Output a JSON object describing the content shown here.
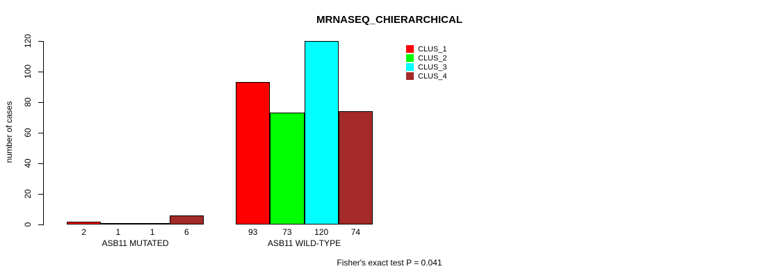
{
  "chart_data": {
    "type": "bar",
    "title": "MRNASEQ_CHIERARCHICAL",
    "xlabel": "",
    "ylabel": "number of cases",
    "ylim": [
      0,
      120
    ],
    "yticks": [
      0,
      20,
      40,
      60,
      80,
      100,
      120
    ],
    "grid": false,
    "legend_position": "top-right-inside",
    "groups": [
      "ASB11 MUTATED",
      "ASB11 WILD-TYPE"
    ],
    "series": [
      {
        "name": "CLUS_1",
        "color": "#ff0000",
        "values": [
          2,
          93
        ]
      },
      {
        "name": "CLUS_2",
        "color": "#00ff00",
        "values": [
          1,
          73
        ]
      },
      {
        "name": "CLUS_3",
        "color": "#00ffff",
        "values": [
          1,
          120
        ]
      },
      {
        "name": "CLUS_4",
        "color": "#a52a2a",
        "values": [
          6,
          74
        ]
      }
    ],
    "bar_value_labels": [
      [
        2,
        1,
        1,
        6
      ],
      [
        93,
        73,
        120,
        74
      ]
    ],
    "annotation": "Fisher's exact test P = 0.041"
  }
}
